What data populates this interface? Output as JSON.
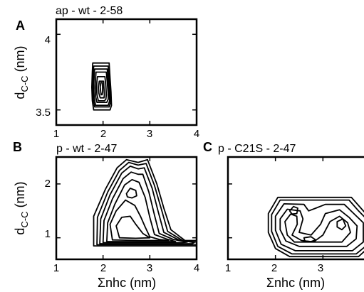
{
  "figure": {
    "panels": [
      "A",
      "B",
      "C"
    ]
  },
  "chart_data": [
    {
      "type": "contour",
      "panel": "A",
      "title": "ap - wt - 2-58",
      "xlabel": "",
      "ylabel": "dC-C (nm)",
      "xlim": [
        1,
        4
      ],
      "ylim": [
        3.4,
        4.1
      ],
      "xticks": [
        1,
        2,
        3,
        4
      ],
      "yticks": [
        3.5,
        4
      ],
      "ytick_labels": [
        "3.5",
        "4"
      ],
      "xtick_labels": [
        "1",
        "2",
        "3",
        "4"
      ],
      "contours": [
        [
          [
            1.78,
            3.81
          ],
          [
            2.13,
            3.81
          ],
          [
            2.15,
            3.71
          ],
          [
            2.17,
            3.62
          ],
          [
            2.18,
            3.53
          ],
          [
            2.15,
            3.5
          ],
          [
            1.8,
            3.5
          ],
          [
            1.77,
            3.56
          ],
          [
            1.76,
            3.65
          ],
          [
            1.77,
            3.75
          ]
        ],
        [
          [
            1.8,
            3.79
          ],
          [
            2.11,
            3.79
          ],
          [
            2.13,
            3.7
          ],
          [
            2.15,
            3.62
          ],
          [
            2.16,
            3.55
          ],
          [
            2.13,
            3.52
          ],
          [
            1.82,
            3.52
          ],
          [
            1.79,
            3.57
          ],
          [
            1.78,
            3.65
          ],
          [
            1.79,
            3.74
          ]
        ],
        [
          [
            1.82,
            3.77
          ],
          [
            2.09,
            3.77
          ],
          [
            2.11,
            3.69
          ],
          [
            2.13,
            3.61
          ],
          [
            2.14,
            3.56
          ],
          [
            2.11,
            3.53
          ],
          [
            1.84,
            3.53
          ],
          [
            1.81,
            3.58
          ],
          [
            1.8,
            3.65
          ],
          [
            1.81,
            3.73
          ]
        ],
        [
          [
            1.85,
            3.75
          ],
          [
            2.07,
            3.75
          ],
          [
            2.09,
            3.68
          ],
          [
            2.11,
            3.61
          ],
          [
            2.11,
            3.57
          ],
          [
            2.08,
            3.55
          ],
          [
            1.87,
            3.55
          ],
          [
            1.84,
            3.59
          ],
          [
            1.83,
            3.65
          ],
          [
            1.84,
            3.71
          ]
        ],
        [
          [
            1.88,
            3.72
          ],
          [
            2.04,
            3.72
          ],
          [
            2.06,
            3.66
          ],
          [
            2.07,
            3.6
          ],
          [
            2.06,
            3.57
          ],
          [
            2.03,
            3.56
          ],
          [
            1.9,
            3.56
          ],
          [
            1.87,
            3.6
          ],
          [
            1.86,
            3.65
          ],
          [
            1.87,
            3.69
          ]
        ],
        [
          [
            1.92,
            3.69
          ],
          [
            2.01,
            3.69
          ],
          [
            2.02,
            3.64
          ],
          [
            2.03,
            3.6
          ],
          [
            2.02,
            3.58
          ],
          [
            1.99,
            3.58
          ],
          [
            1.94,
            3.58
          ],
          [
            1.91,
            3.61
          ],
          [
            1.9,
            3.65
          ],
          [
            1.91,
            3.67
          ]
        ],
        [
          [
            1.95,
            3.68
          ],
          [
            1.98,
            3.68
          ],
          [
            1.99,
            3.65
          ],
          [
            1.99,
            3.62
          ],
          [
            1.98,
            3.6
          ],
          [
            1.96,
            3.6
          ],
          [
            1.95,
            3.62
          ],
          [
            1.94,
            3.65
          ]
        ]
      ]
    },
    {
      "type": "contour",
      "panel": "B",
      "title": "p - wt - 2-47",
      "xlabel": "Σnhc (nm)",
      "ylabel": "dC-C (nm)",
      "xlim": [
        1,
        4
      ],
      "ylim": [
        0.6,
        2.5
      ],
      "xticks": [
        1,
        2,
        3,
        4
      ],
      "yticks": [
        1,
        2
      ],
      "xtick_labels": [
        "1",
        "2",
        "3",
        "4"
      ],
      "ytick_labels": [
        "1",
        "2"
      ],
      "contours": [
        [
          [
            1.8,
            0.85
          ],
          [
            1.8,
            1.4
          ],
          [
            2.05,
            1.9
          ],
          [
            2.3,
            2.3
          ],
          [
            2.5,
            2.45
          ],
          [
            2.75,
            2.4
          ],
          [
            2.95,
            2.45
          ],
          [
            3.15,
            2.0
          ],
          [
            3.3,
            1.55
          ],
          [
            3.45,
            1.15
          ],
          [
            3.75,
            0.95
          ],
          [
            4.0,
            0.95
          ],
          [
            4.0,
            0.85
          ]
        ],
        [
          [
            1.87,
            0.87
          ],
          [
            1.88,
            1.38
          ],
          [
            2.1,
            1.85
          ],
          [
            2.35,
            2.25
          ],
          [
            2.55,
            2.4
          ],
          [
            2.75,
            2.35
          ],
          [
            2.92,
            2.38
          ],
          [
            3.1,
            1.97
          ],
          [
            3.25,
            1.52
          ],
          [
            3.38,
            1.12
          ],
          [
            3.7,
            0.95
          ],
          [
            4.0,
            0.92
          ],
          [
            4.0,
            0.87
          ]
        ],
        [
          [
            1.93,
            0.89
          ],
          [
            1.95,
            1.35
          ],
          [
            2.15,
            1.8
          ],
          [
            2.4,
            2.2
          ],
          [
            2.58,
            2.33
          ],
          [
            2.75,
            2.28
          ],
          [
            2.88,
            2.3
          ],
          [
            3.05,
            1.92
          ],
          [
            3.18,
            1.48
          ],
          [
            3.3,
            1.1
          ],
          [
            3.62,
            0.96
          ],
          [
            3.95,
            0.91
          ],
          [
            3.9,
            0.89
          ]
        ],
        [
          [
            2.0,
            0.91
          ],
          [
            2.02,
            1.32
          ],
          [
            2.2,
            1.72
          ],
          [
            2.43,
            2.1
          ],
          [
            2.6,
            2.22
          ],
          [
            2.75,
            2.18
          ],
          [
            2.85,
            2.18
          ],
          [
            2.98,
            1.85
          ],
          [
            3.1,
            1.42
          ],
          [
            3.2,
            1.08
          ],
          [
            3.5,
            0.97
          ],
          [
            3.8,
            0.92
          ],
          [
            3.7,
            0.91
          ]
        ],
        [
          [
            2.08,
            0.93
          ],
          [
            2.1,
            1.28
          ],
          [
            2.25,
            1.62
          ],
          [
            2.46,
            1.98
          ],
          [
            2.62,
            2.08
          ],
          [
            2.77,
            2.03
          ],
          [
            2.9,
            1.75
          ],
          [
            3.0,
            1.38
          ],
          [
            3.1,
            1.06
          ],
          [
            3.35,
            0.98
          ],
          [
            3.55,
            0.93
          ]
        ],
        [
          [
            2.2,
            0.96
          ],
          [
            2.15,
            1.25
          ],
          [
            2.28,
            1.5
          ],
          [
            2.48,
            1.7
          ],
          [
            2.68,
            1.6
          ],
          [
            2.8,
            1.4
          ],
          [
            2.9,
            1.2
          ],
          [
            3.0,
            1.02
          ],
          [
            3.2,
            0.97
          ],
          [
            3.4,
            0.95
          ],
          [
            2.8,
            0.95
          ]
        ],
        [
          [
            2.35,
            1.0
          ],
          [
            2.28,
            1.22
          ],
          [
            2.4,
            1.38
          ],
          [
            2.58,
            1.4
          ],
          [
            2.7,
            1.25
          ],
          [
            2.85,
            1.08
          ],
          [
            3.0,
            1.0
          ],
          [
            2.7,
            0.99
          ]
        ],
        [
          [
            2.5,
            1.82
          ],
          [
            2.58,
            1.92
          ],
          [
            2.7,
            1.88
          ],
          [
            2.72,
            1.78
          ],
          [
            2.62,
            1.74
          ],
          [
            2.52,
            1.76
          ]
        ]
      ]
    },
    {
      "type": "contour",
      "panel": "C",
      "title": "p - C21S - 2-47",
      "xlabel": "Σnhc (nm)",
      "ylabel": "",
      "xlim": [
        1,
        4
      ],
      "ylim": [
        0.6,
        2.5
      ],
      "xticks": [
        1,
        2,
        3
      ],
      "yticks": [
        1,
        2
      ],
      "xtick_labels": [
        "1",
        "2",
        "3"
      ],
      "ytick_labels": [
        "",
        ""
      ],
      "contours": [
        [
          [
            1.85,
            1.45
          ],
          [
            2.05,
            1.75
          ],
          [
            3.6,
            1.75
          ],
          [
            3.8,
            1.55
          ],
          [
            4.0,
            1.35
          ],
          [
            4.0,
            0.85
          ],
          [
            3.75,
            0.65
          ],
          [
            2.3,
            0.65
          ],
          [
            2.0,
            0.8
          ],
          [
            1.85,
            1.1
          ]
        ],
        [
          [
            1.92,
            1.43
          ],
          [
            2.1,
            1.7
          ],
          [
            3.55,
            1.7
          ],
          [
            3.75,
            1.5
          ],
          [
            3.95,
            1.32
          ],
          [
            3.95,
            0.88
          ],
          [
            3.7,
            0.7
          ],
          [
            2.35,
            0.7
          ],
          [
            2.05,
            0.84
          ],
          [
            1.92,
            1.12
          ]
        ],
        [
          [
            2.0,
            1.4
          ],
          [
            2.18,
            1.63
          ],
          [
            2.6,
            1.62
          ],
          [
            2.7,
            1.5
          ],
          [
            2.85,
            1.55
          ],
          [
            3.05,
            1.62
          ],
          [
            3.45,
            1.62
          ],
          [
            3.65,
            1.45
          ],
          [
            3.85,
            1.28
          ],
          [
            3.85,
            0.92
          ],
          [
            3.62,
            0.76
          ],
          [
            2.42,
            0.76
          ],
          [
            2.12,
            0.88
          ],
          [
            2.0,
            1.14
          ]
        ],
        [
          [
            2.1,
            1.35
          ],
          [
            2.25,
            1.53
          ],
          [
            2.52,
            1.5
          ],
          [
            2.58,
            1.35
          ],
          [
            2.5,
            1.1
          ],
          [
            2.75,
            1.05
          ],
          [
            2.95,
            1.25
          ],
          [
            3.05,
            1.45
          ],
          [
            3.35,
            1.52
          ],
          [
            3.55,
            1.38
          ],
          [
            3.72,
            1.22
          ],
          [
            3.7,
            0.98
          ],
          [
            3.5,
            0.84
          ],
          [
            2.5,
            0.84
          ],
          [
            2.22,
            0.94
          ],
          [
            2.1,
            1.15
          ]
        ],
        [
          [
            2.2,
            1.3
          ],
          [
            2.32,
            1.44
          ],
          [
            2.45,
            1.4
          ],
          [
            2.46,
            1.25
          ],
          [
            2.35,
            1.05
          ],
          [
            2.55,
            0.95
          ],
          [
            2.8,
            0.92
          ],
          [
            3.0,
            1.05
          ],
          [
            3.15,
            1.3
          ],
          [
            3.35,
            1.4
          ],
          [
            3.52,
            1.28
          ],
          [
            3.58,
            1.1
          ],
          [
            3.4,
            0.92
          ],
          [
            2.4,
            0.92
          ],
          [
            2.25,
            1.05
          ]
        ],
        [
          [
            2.3,
            1.5
          ],
          [
            2.38,
            1.58
          ],
          [
            2.47,
            1.55
          ],
          [
            2.45,
            1.45
          ],
          [
            2.35,
            1.44
          ]
        ],
        [
          [
            3.3,
            1.3
          ],
          [
            3.42,
            1.35
          ],
          [
            3.48,
            1.22
          ],
          [
            3.4,
            1.15
          ],
          [
            3.3,
            1.2
          ]
        ],
        [
          [
            2.6,
            1.0
          ],
          [
            2.75,
            1.02
          ],
          [
            2.85,
            0.96
          ],
          [
            2.75,
            0.93
          ],
          [
            2.62,
            0.94
          ]
        ]
      ]
    }
  ]
}
